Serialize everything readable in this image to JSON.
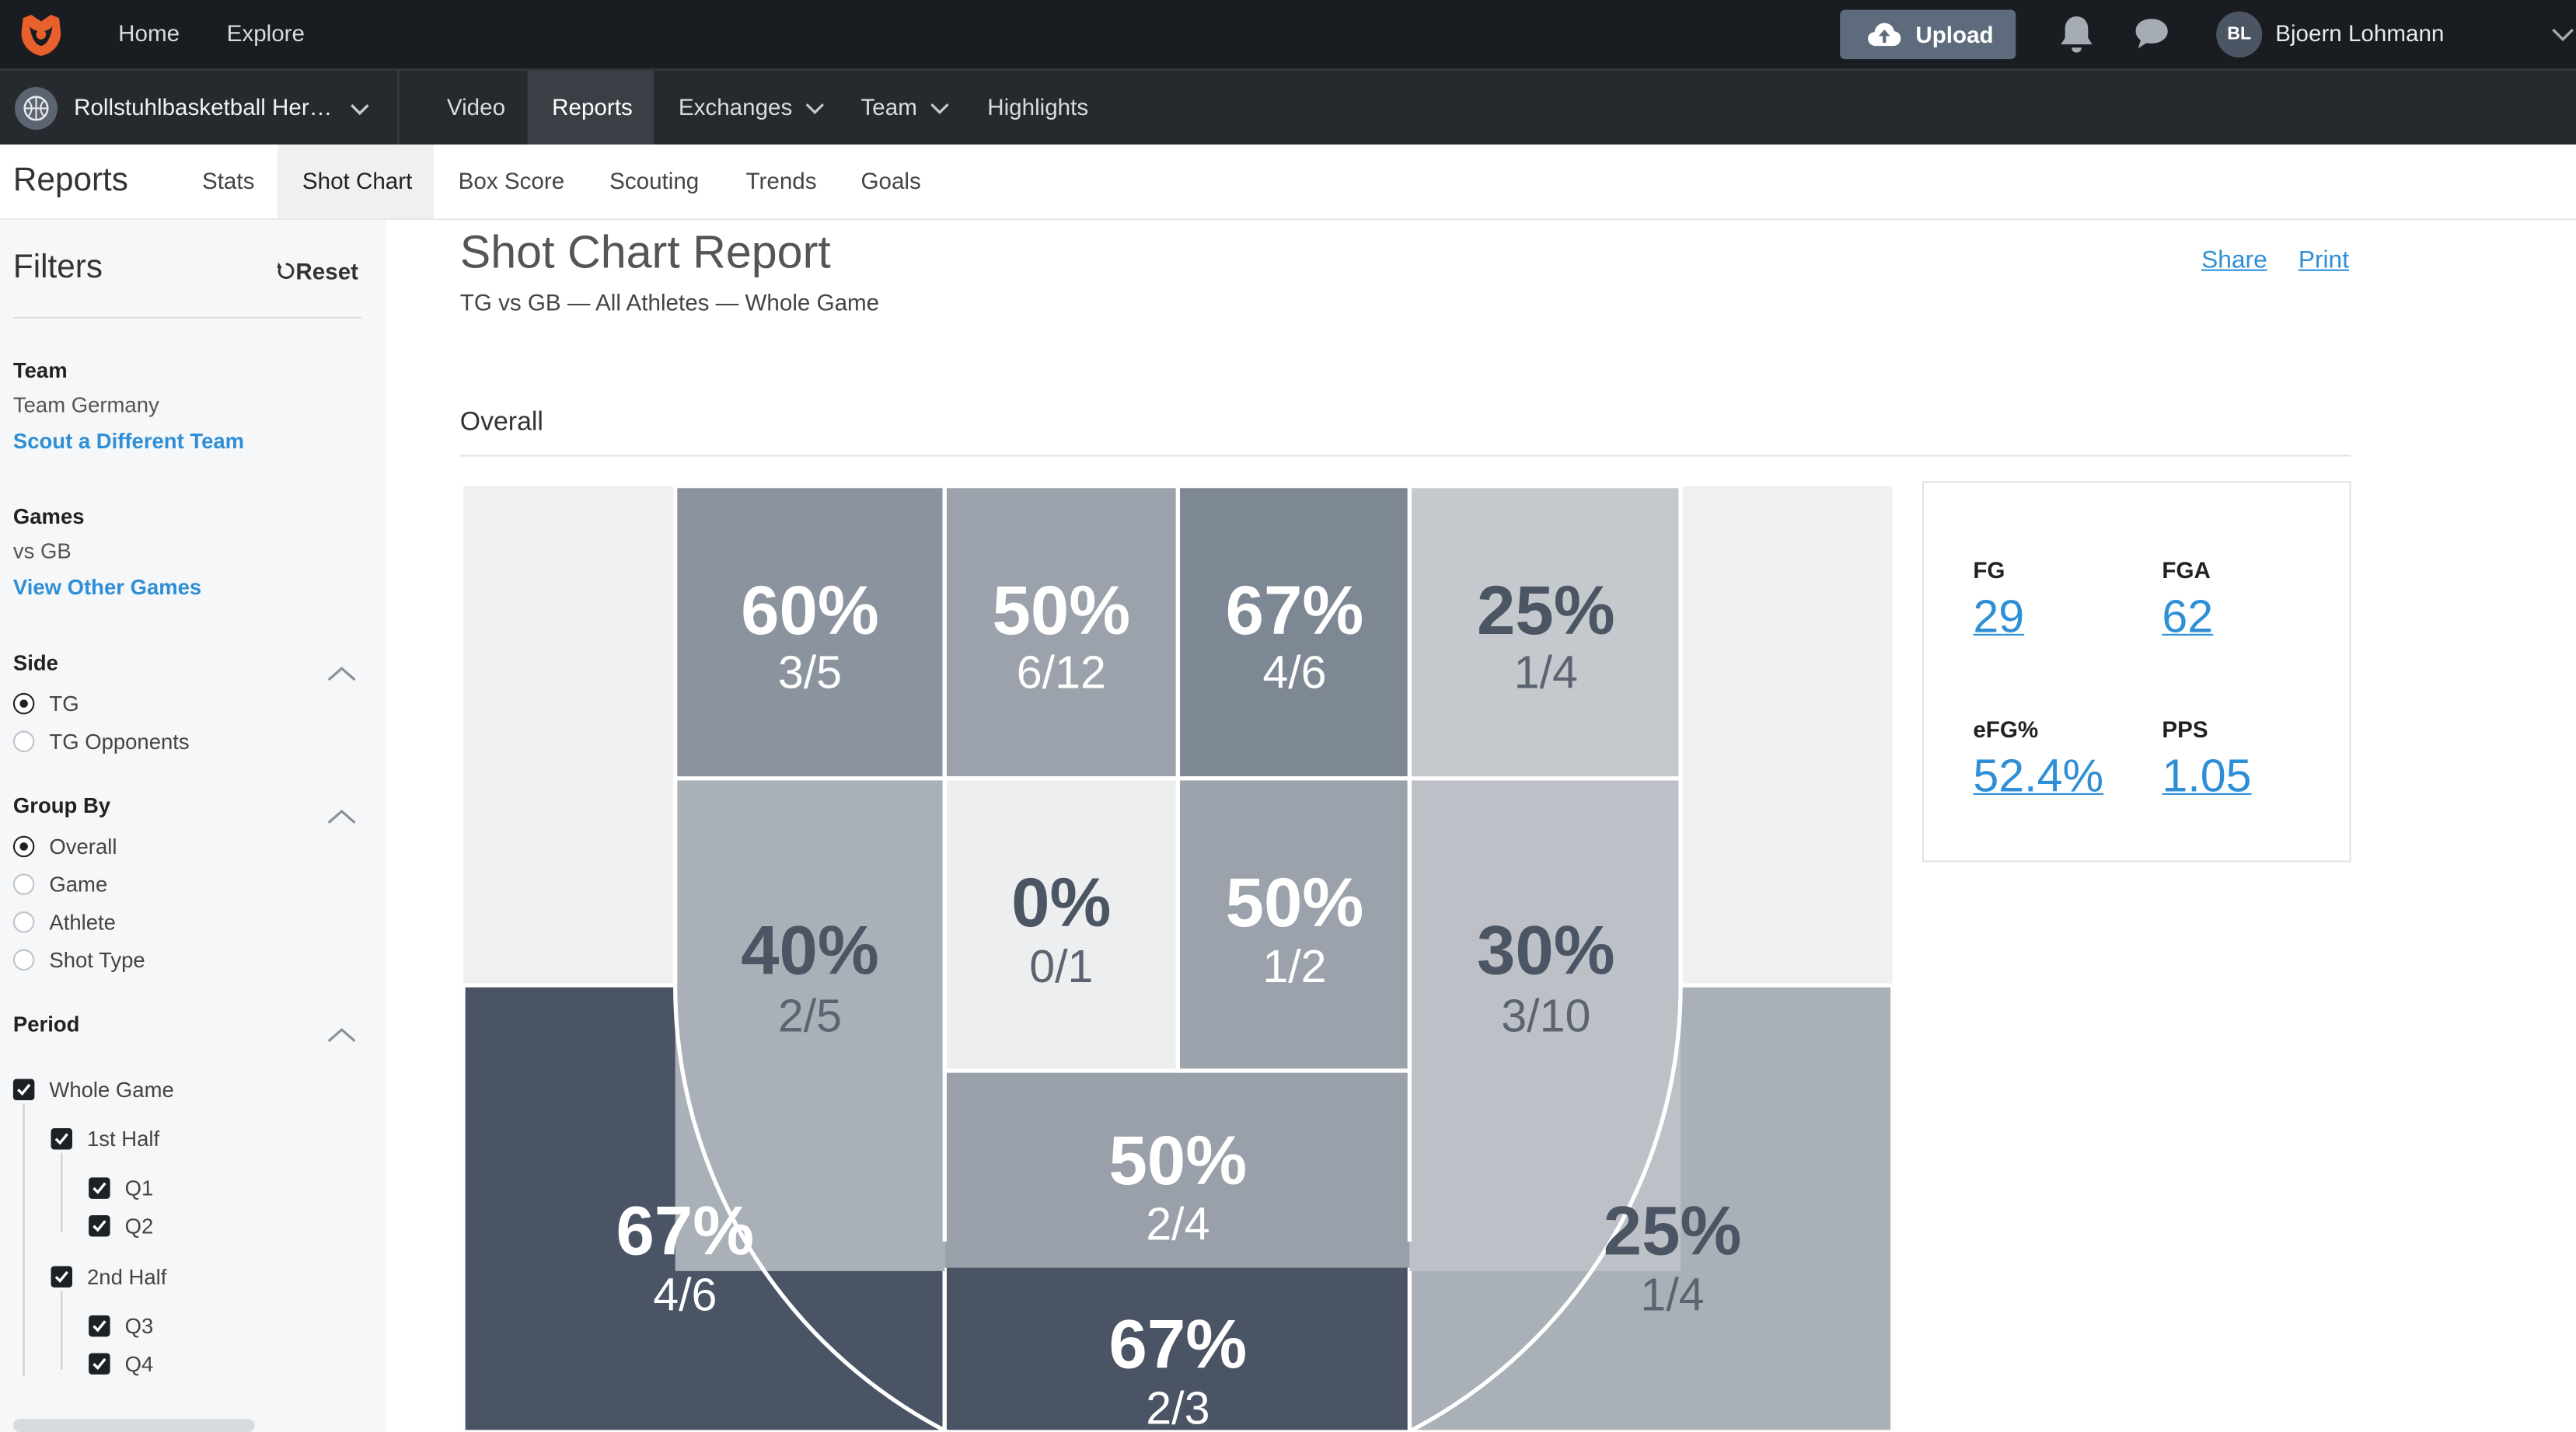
{
  "topbar": {
    "nav": [
      "Home",
      "Explore"
    ],
    "upload_label": "Upload",
    "user_initials": "BL",
    "user_name": "Bjoern Lohmann"
  },
  "subnav": {
    "team_name": "Rollstuhlbasketball Her…",
    "items": [
      "Video",
      "Reports",
      "Exchanges",
      "Team",
      "Highlights"
    ],
    "active": "Reports"
  },
  "reports": {
    "title": "Reports",
    "tabs": [
      "Stats",
      "Shot Chart",
      "Box Score",
      "Scouting",
      "Trends",
      "Goals"
    ],
    "active_tab": "Shot Chart"
  },
  "filters": {
    "title": "Filters",
    "reset_label": "Reset",
    "team_heading": "Team",
    "team_value": "Team Germany",
    "team_link": "Scout a Different Team",
    "games_heading": "Games",
    "games_value": "vs GB",
    "games_link": "View Other Games",
    "side_heading": "Side",
    "side_options": [
      "TG",
      "TG Opponents"
    ],
    "side_selected": "TG",
    "groupby_heading": "Group By",
    "groupby_options": [
      "Overall",
      "Game",
      "Athlete",
      "Shot Type"
    ],
    "groupby_selected": "Overall",
    "period_heading": "Period",
    "period": {
      "whole": "Whole Game",
      "first_half": "1st Half",
      "q1": "Q1",
      "q2": "Q2",
      "second_half": "2nd Half",
      "q3": "Q3",
      "q4": "Q4"
    }
  },
  "report": {
    "title": "Shot Chart Report",
    "subtitle": "TG vs GB — All Athletes — Whole Game",
    "share_label": "Share",
    "print_label": "Print",
    "section": "Overall"
  },
  "zones": [
    {
      "id": "top-mid-left",
      "pct": "60%",
      "made_att": "3/5"
    },
    {
      "id": "top-center-left",
      "pct": "50%",
      "made_att": "6/12"
    },
    {
      "id": "top-center-right",
      "pct": "67%",
      "made_att": "4/6"
    },
    {
      "id": "top-mid-right",
      "pct": "25%",
      "made_att": "1/4"
    },
    {
      "id": "mid-left-arc",
      "pct": "40%",
      "made_att": "2/5"
    },
    {
      "id": "mid-center-left",
      "pct": "0%",
      "made_att": "0/1"
    },
    {
      "id": "mid-center-right",
      "pct": "50%",
      "made_att": "1/2"
    },
    {
      "id": "mid-right-arc",
      "pct": "30%",
      "made_att": "3/10"
    },
    {
      "id": "inside-arc-bottom",
      "pct": "50%",
      "made_att": "2/4"
    },
    {
      "id": "left-three",
      "pct": "67%",
      "made_att": "4/6"
    },
    {
      "id": "center-three",
      "pct": "67%",
      "made_att": "2/3"
    },
    {
      "id": "right-three",
      "pct": "25%",
      "made_att": "1/4"
    }
  ],
  "summary": {
    "fg_label": "FG",
    "fg_value": "29",
    "fga_label": "FGA",
    "fga_value": "62",
    "efg_label": "eFG%",
    "efg_value": "52.4%",
    "pps_label": "PPS",
    "pps_value": "1.05"
  },
  "colors": {
    "accent_link": "#2f8fd6",
    "topbar_bg": "#191c20",
    "subnav_bg": "#262a2f",
    "upload_bg": "#5d6b7d",
    "brand_orange": "#e8612c"
  }
}
